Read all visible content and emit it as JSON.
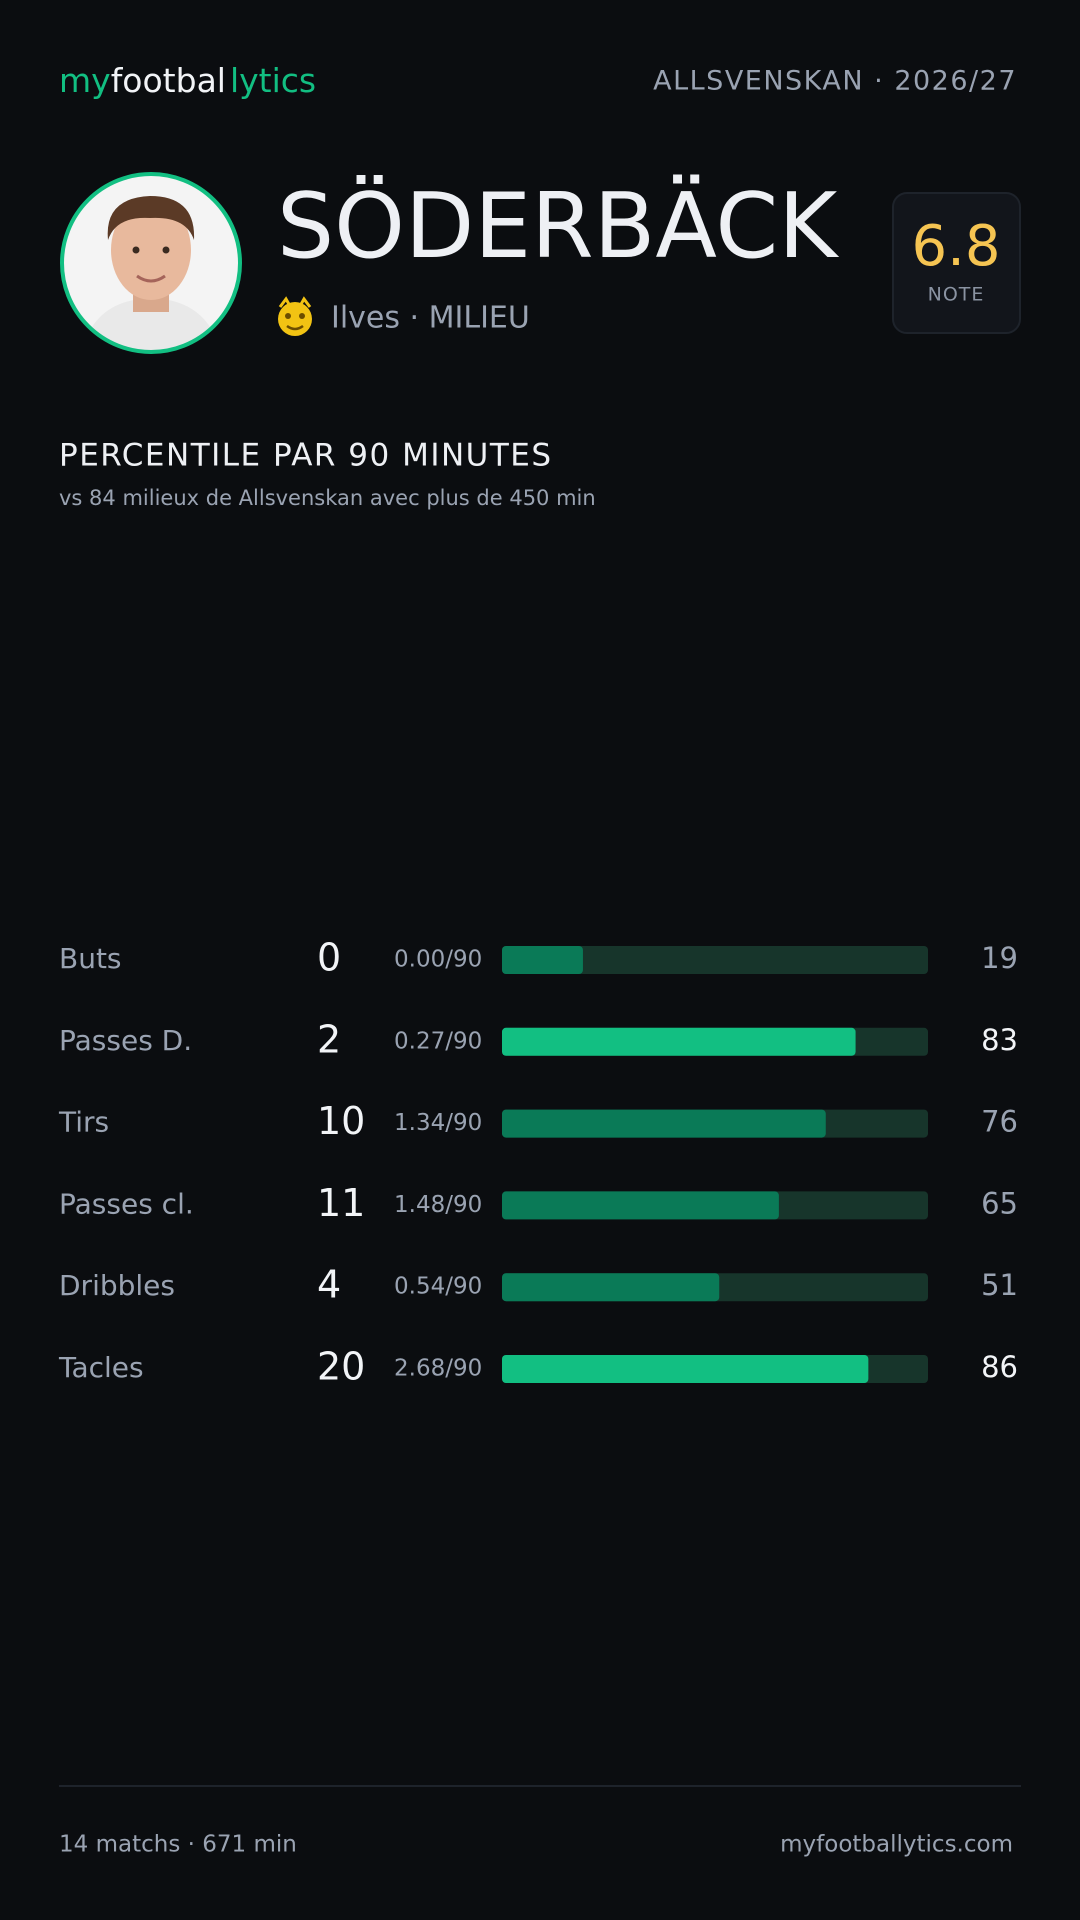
{
  "header": {
    "logo": [
      "my",
      "footbal",
      "lytics"
    ],
    "league": "ALLSVENSKAN · 2026/27"
  },
  "player": {
    "name": "SÖDERBÄCK",
    "team": "Ilves · MILIEU",
    "rating": "6.8",
    "rating_label": "NOTE"
  },
  "section": {
    "title": "PERCENTILE PAR 90 MINUTES",
    "subtitle": "vs 84 milieux de Allsvenskan avec plus de 450 min"
  },
  "stats": [
    {
      "label": "Buts",
      "count": 0,
      "per90": "0.00/90",
      "percentile": 19,
      "color": "#0a7a57"
    },
    {
      "label": "Passes D.",
      "count": 2,
      "per90": "0.27/90",
      "percentile": 83,
      "color": "#12bf82"
    },
    {
      "label": "Tirs",
      "count": 10,
      "per90": "1.34/90",
      "percentile": 76,
      "color": "#0a7a57"
    },
    {
      "label": "Passes cl.",
      "count": 11,
      "per90": "1.48/90",
      "percentile": 65,
      "color": "#0a7a57"
    },
    {
      "label": "Dribbles",
      "count": 4,
      "per90": "0.54/90",
      "percentile": 51,
      "color": "#0a7a57"
    },
    {
      "label": "Tacles",
      "count": 20,
      "per90": "2.68/90",
      "percentile": 86,
      "color": "#12bf82"
    }
  ],
  "footer": {
    "left": "14 matchs · 671 min",
    "right": "myfootballytics.com"
  }
}
